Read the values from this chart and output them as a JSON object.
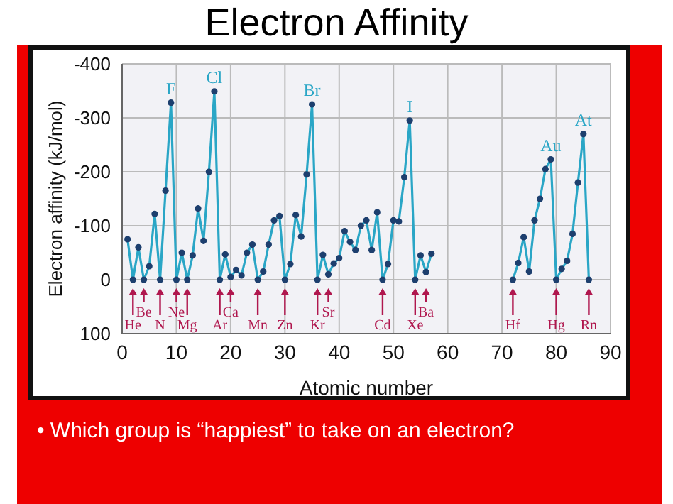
{
  "chart_data": {
    "type": "line",
    "title": "Electron Affinity",
    "xlabel": "Atomic number",
    "ylabel": "Electron affinity (kJ/mol)",
    "x": [
      1,
      2,
      3,
      4,
      5,
      6,
      7,
      8,
      9,
      10,
      11,
      12,
      13,
      14,
      15,
      16,
      17,
      18,
      19,
      20,
      21,
      22,
      23,
      24,
      25,
      26,
      27,
      28,
      29,
      30,
      31,
      32,
      33,
      34,
      35,
      36,
      37,
      38,
      39,
      40,
      41,
      42,
      43,
      44,
      45,
      46,
      47,
      48,
      49,
      50,
      51,
      52,
      53,
      54,
      55,
      56,
      57,
      58,
      59,
      60,
      61,
      62,
      63,
      64,
      65,
      66,
      67,
      68,
      69,
      70,
      71,
      72,
      73,
      74,
      75,
      76,
      77,
      78,
      79,
      80,
      81,
      82,
      83,
      84,
      85,
      86
    ],
    "series": [
      {
        "color": "#2aa6c6",
        "values": [
          -75,
          0,
          -60,
          0,
          -25,
          -122,
          0,
          -165,
          -328,
          0,
          -50,
          0,
          -45,
          -132,
          -72,
          -200,
          -349,
          0,
          -47,
          -5,
          -18,
          -8,
          -50,
          -65,
          0,
          -15,
          -65,
          -110,
          -118,
          0,
          -29,
          -120,
          -80,
          -195,
          -325,
          0,
          -46,
          -10,
          -30,
          -40,
          -90,
          -70,
          -55,
          -100,
          -110,
          -55,
          -125,
          0,
          -29,
          -110,
          -108,
          -190,
          -295,
          0,
          -45,
          -14,
          -48,
          null,
          null,
          null,
          null,
          null,
          null,
          null,
          null,
          null,
          null,
          null,
          null,
          null,
          null,
          0,
          -31,
          -79,
          -15,
          -110,
          -150,
          -205,
          -223,
          0,
          -20,
          -35,
          -85,
          -180,
          -270,
          0
        ]
      }
    ],
    "xlim": [
      0,
      90
    ],
    "xticks": [
      0,
      10,
      20,
      30,
      40,
      50,
      60,
      70,
      80,
      90
    ],
    "ylim": [
      100,
      -400
    ],
    "yticks": [
      -400,
      -300,
      -200,
      -100,
      0,
      100
    ],
    "grid": true,
    "marker": "circle",
    "line_style": "solid",
    "annotations": [
      "• Which group is “happiest” to take on an electron?",
      {
        "text": "F",
        "x": 9,
        "y": -328
      },
      {
        "text": "Cl",
        "x": 17,
        "y": -349
      },
      {
        "text": "Br",
        "x": 35,
        "y": -325
      },
      {
        "text": "I",
        "x": 53,
        "y": -295
      },
      {
        "text": "Au",
        "x": 79,
        "y": -223
      },
      {
        "text": "At",
        "x": 85,
        "y": -270
      },
      {
        "text": "He",
        "x": 2,
        "y": 0
      },
      {
        "text": "Be",
        "x": 4,
        "y": 0
      },
      {
        "text": "N",
        "x": 7,
        "y": 0
      },
      {
        "text": "Ne",
        "x": 10,
        "y": 0
      },
      {
        "text": "Mg",
        "x": 12,
        "y": 0
      },
      {
        "text": "Ar",
        "x": 18,
        "y": 0
      },
      {
        "text": "Ca",
        "x": 20,
        "y": -5
      },
      {
        "text": "Mn",
        "x": 25,
        "y": 0
      },
      {
        "text": "Zn",
        "x": 30,
        "y": 0
      },
      {
        "text": "Kr",
        "x": 36,
        "y": 0
      },
      {
        "text": "Sr",
        "x": 38,
        "y": -10
      },
      {
        "text": "Cd",
        "x": 48,
        "y": 0
      },
      {
        "text": "Xe",
        "x": 54,
        "y": 0
      },
      {
        "text": "Ba",
        "x": 56,
        "y": -14
      },
      {
        "text": "Hf",
        "x": 72,
        "y": 0
      },
      {
        "text": "Hg",
        "x": 80,
        "y": 0
      },
      {
        "text": "Rn",
        "x": 86,
        "y": 0
      }
    ]
  }
}
